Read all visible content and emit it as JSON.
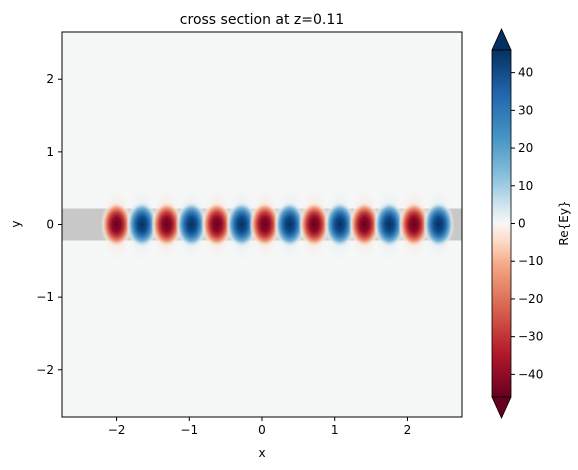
{
  "chart_data": {
    "type": "heatmap",
    "title": "cross section at z=0.11",
    "xlabel": "x",
    "ylabel": "y",
    "xlim": [
      -2.75,
      2.75
    ],
    "ylim": [
      -2.65,
      2.65
    ],
    "x_ticks": [
      -2,
      -1,
      0,
      1,
      2
    ],
    "y_ticks": [
      -2,
      -1,
      0,
      1,
      2
    ],
    "x_tick_labels": [
      "−2",
      "−1",
      "0",
      "1",
      "2"
    ],
    "y_tick_labels": [
      "−2",
      "−1",
      "0",
      "1",
      "2"
    ],
    "waveguide": {
      "y_min": -0.22,
      "y_max": 0.22,
      "x_start": -2.75,
      "x_end": 2.75,
      "color": "#c8c8c8"
    },
    "field_region": {
      "x_start": -2.05,
      "x_end": 2.75
    },
    "field_period": 0.69,
    "field_lobes": [
      {
        "x": -2.0,
        "sign": -1
      },
      {
        "x": -1.65,
        "sign": 1
      },
      {
        "x": -1.31,
        "sign": -1
      },
      {
        "x": -0.97,
        "sign": 1
      },
      {
        "x": -0.62,
        "sign": -1
      },
      {
        "x": -0.28,
        "sign": 1
      },
      {
        "x": 0.04,
        "sign": -1
      },
      {
        "x": 0.38,
        "sign": 1
      },
      {
        "x": 0.72,
        "sign": -1
      },
      {
        "x": 1.07,
        "sign": 1
      },
      {
        "x": 1.41,
        "sign": -1
      },
      {
        "x": 1.75,
        "sign": 1
      },
      {
        "x": 2.09,
        "sign": -1
      },
      {
        "x": 2.43,
        "sign": 1
      }
    ],
    "colorbar": {
      "label": "Re{Ey}",
      "vmin": -46,
      "vmax": 46,
      "ticks": [
        -40,
        -30,
        -20,
        -10,
        0,
        10,
        20,
        30,
        40
      ],
      "tick_labels": [
        "−40",
        "−30",
        "−20",
        "−10",
        "0",
        "10",
        "20",
        "30",
        "40"
      ],
      "colormap": "RdBu",
      "extend": "both"
    },
    "grid": false
  }
}
